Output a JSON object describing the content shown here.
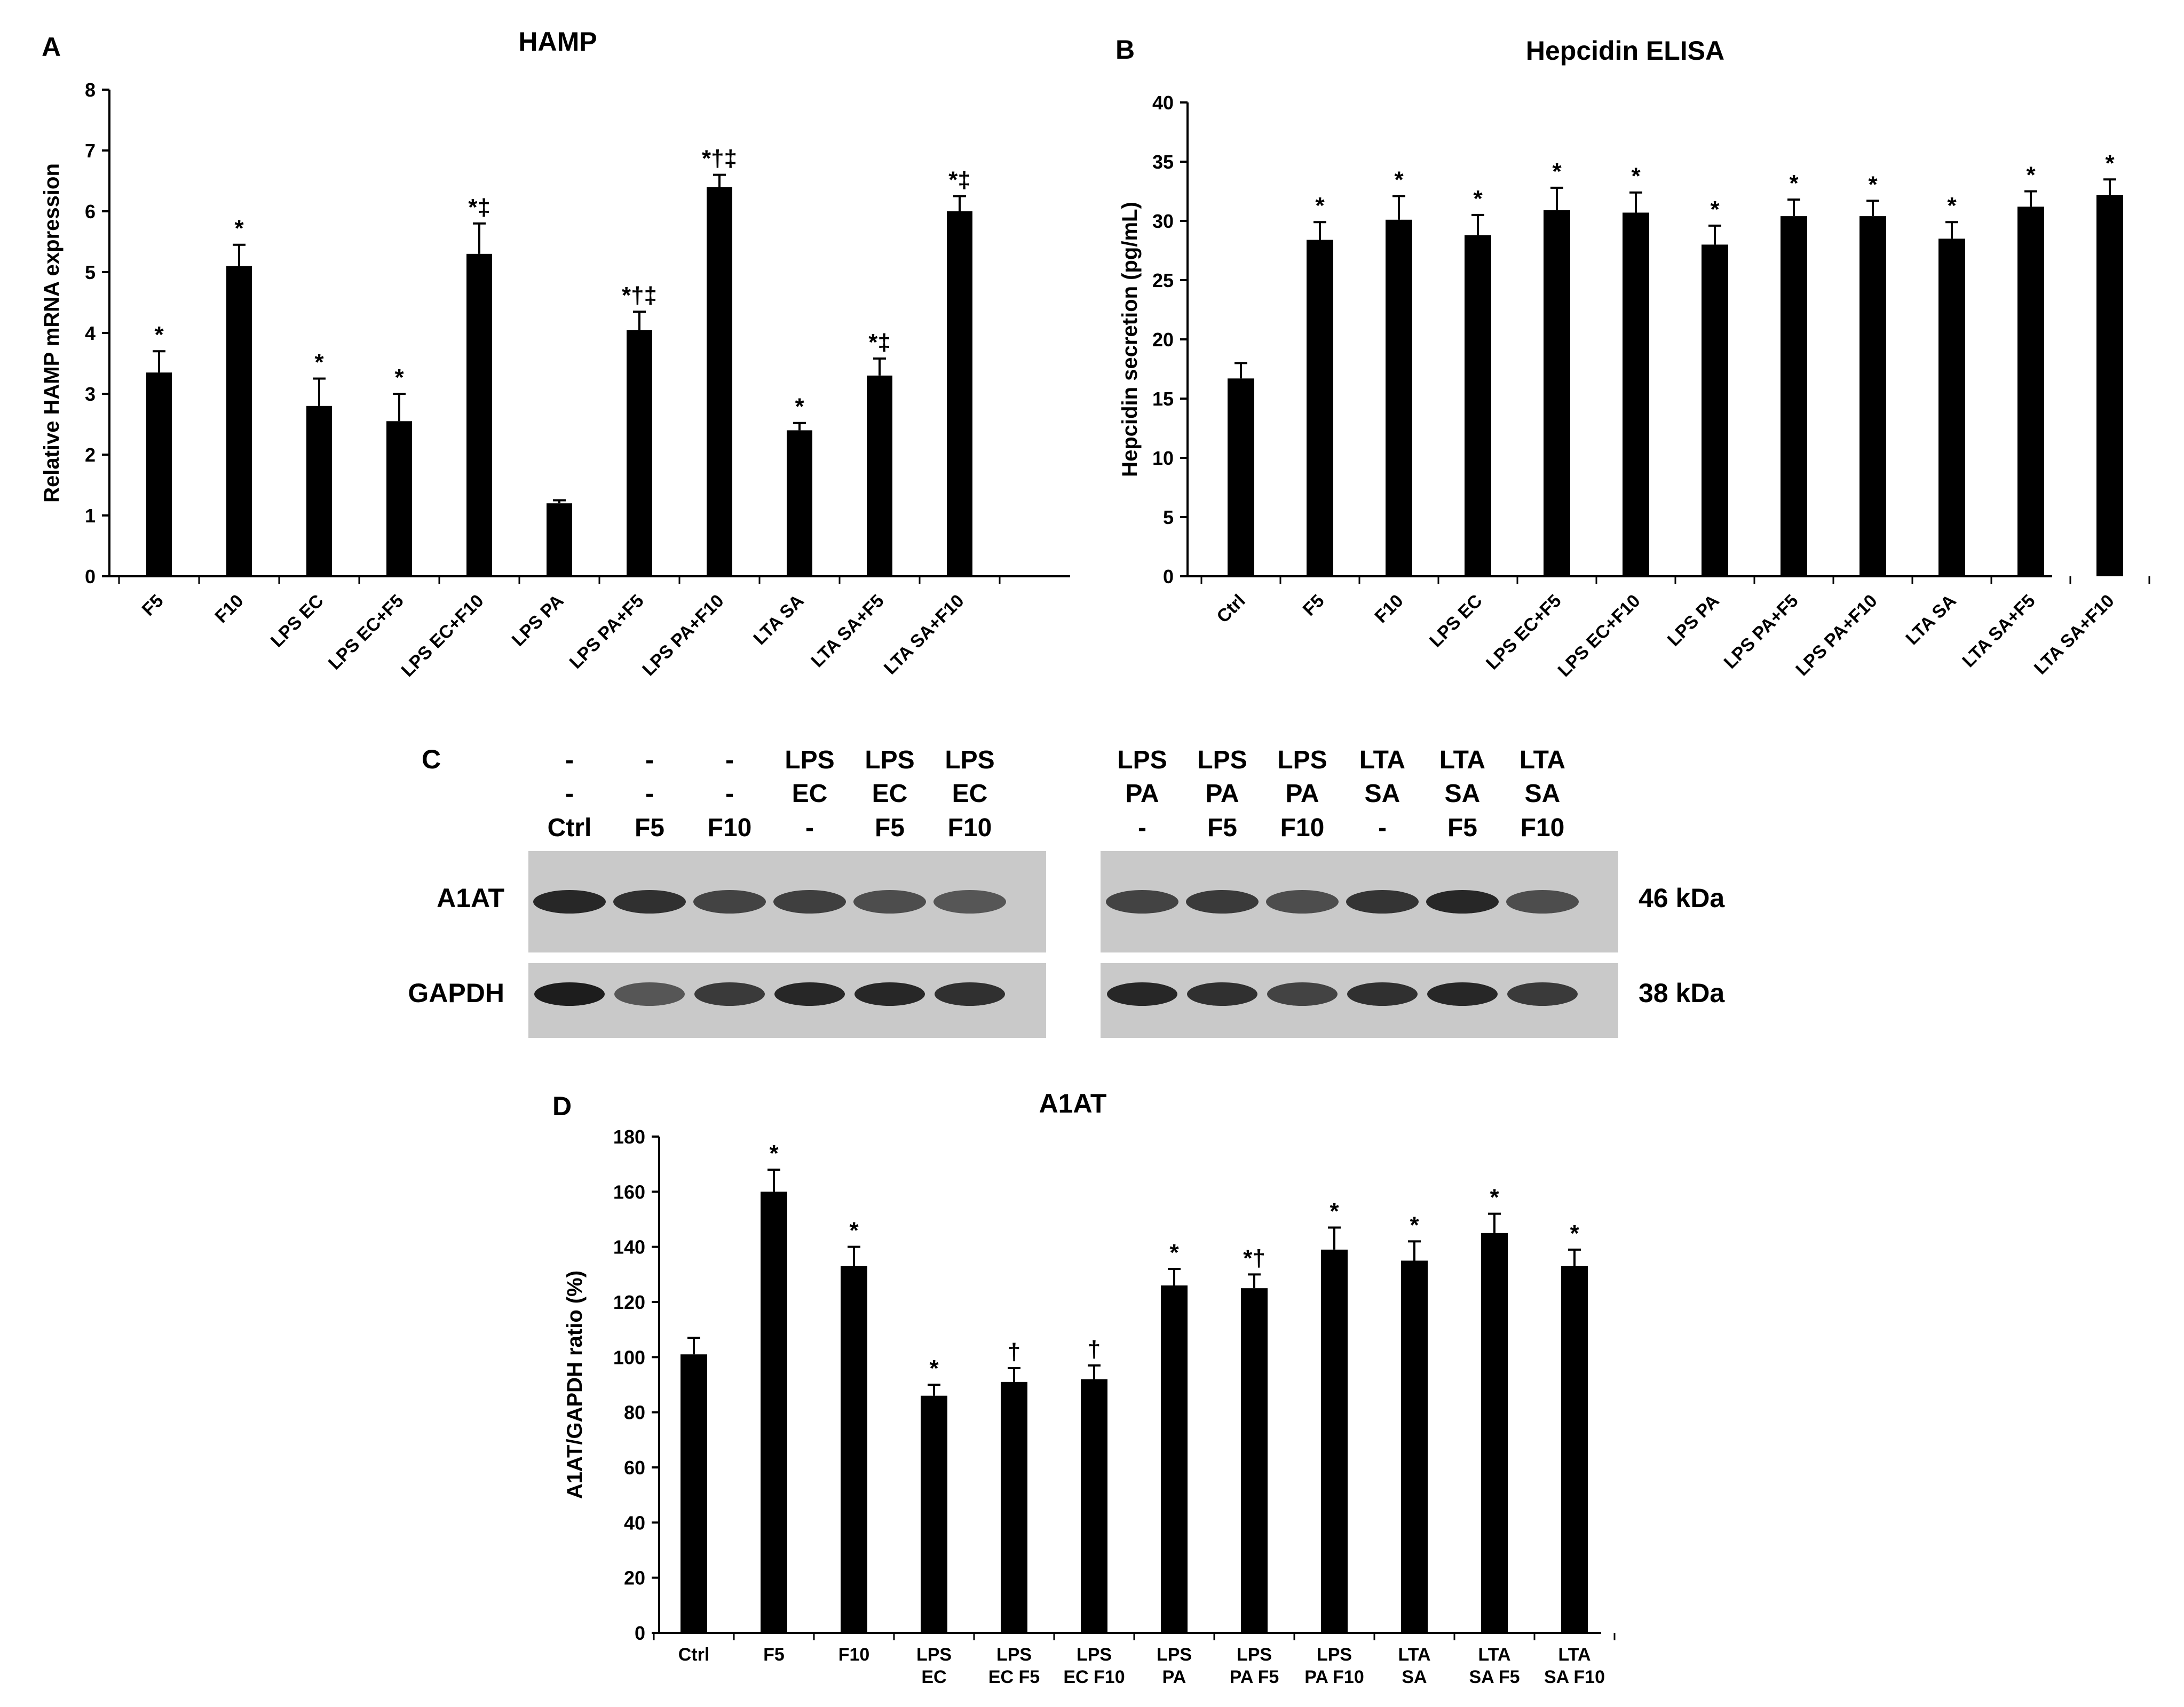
{
  "panels": {
    "A": {
      "letter": "A"
    },
    "B": {
      "letter": "B"
    },
    "C": {
      "letter": "C"
    },
    "D": {
      "letter": "D"
    }
  },
  "chart_data": [
    {
      "id": "A",
      "type": "bar",
      "title": "HAMP",
      "ylabel": "Relative HAMP mRNA expression",
      "xlabel": "",
      "ylim": [
        0,
        8
      ],
      "yticks": [
        0,
        1,
        2,
        3,
        4,
        5,
        6,
        7,
        8
      ],
      "categories": [
        "F5",
        "F10",
        "LPS EC",
        "LPS EC+F5",
        "LPS EC+F10",
        "LPS PA",
        "LPS PA+F5",
        "LPS PA+F10",
        "LTA SA",
        "LTA SA+F5",
        "LTA SA+F10"
      ],
      "values": [
        3.35,
        5.1,
        2.8,
        2.55,
        5.3,
        1.2,
        4.05,
        6.4,
        2.4,
        3.3,
        6.0
      ],
      "errors": [
        0.35,
        0.35,
        0.45,
        0.45,
        0.5,
        0.05,
        0.3,
        0.2,
        0.12,
        0.28,
        0.25
      ],
      "annotations": [
        "*",
        "*",
        "*",
        "*",
        "*‡",
        "",
        "*†‡",
        "*†‡",
        "*",
        "*‡",
        "*‡"
      ],
      "bar_color": "#000000",
      "grid": false
    },
    {
      "id": "B",
      "type": "bar",
      "title": "Hepcidin ELISA",
      "ylabel": "Hepcidin secretion (pg/mL)",
      "xlabel": "",
      "ylim": [
        0,
        40
      ],
      "yticks": [
        0,
        5,
        10,
        15,
        20,
        25,
        30,
        35,
        40
      ],
      "categories": [
        "Ctrl",
        "F5",
        "F10",
        "LPS EC",
        "LPS EC+F5",
        "LPS EC+F10",
        "LPS PA",
        "LPS PA+F5",
        "LPS PA+F10",
        "LTA SA",
        "LTA SA+F5",
        "LTA SA+F10"
      ],
      "values": [
        16.7,
        28.4,
        30.1,
        28.8,
        30.9,
        30.7,
        28.0,
        30.4,
        30.4,
        28.5,
        31.2,
        32.2
      ],
      "errors": [
        1.3,
        1.5,
        2.0,
        1.7,
        1.9,
        1.7,
        1.6,
        1.4,
        1.3,
        1.4,
        1.3,
        1.3
      ],
      "annotations": [
        "",
        "*",
        "*",
        "*",
        "*",
        "*",
        "*",
        "*",
        "*",
        "*",
        "*",
        "*"
      ],
      "bar_color": "#000000",
      "grid": false
    },
    {
      "id": "D",
      "type": "bar",
      "title": "A1AT",
      "ylabel": "A1AT/GAPDH ratio (%)",
      "xlabel": "",
      "ylim": [
        0,
        180
      ],
      "yticks": [
        0,
        20,
        40,
        60,
        80,
        100,
        120,
        140,
        160,
        180
      ],
      "categories": [
        [
          "Ctrl"
        ],
        [
          "F5"
        ],
        [
          "F10"
        ],
        [
          "LPS",
          "EC"
        ],
        [
          "LPS",
          "EC F5"
        ],
        [
          "LPS",
          "EC F10"
        ],
        [
          "LPS",
          "PA"
        ],
        [
          "LPS",
          "PA F5"
        ],
        [
          "LPS",
          "PA F10"
        ],
        [
          "LTA",
          "SA"
        ],
        [
          "LTA",
          "SA F5"
        ],
        [
          "LTA",
          "SA F10"
        ]
      ],
      "values": [
        101,
        160,
        133,
        86,
        91,
        92,
        126,
        125,
        139,
        135,
        145,
        133
      ],
      "errors": [
        6,
        8,
        7,
        4,
        5,
        5,
        6,
        5,
        8,
        7,
        7,
        6
      ],
      "annotations": [
        "",
        "*",
        "*",
        "*",
        "†",
        "†",
        "*",
        "*†",
        "*",
        "*",
        "*",
        "*"
      ],
      "bar_color": "#000000",
      "grid": false
    }
  ],
  "western_blot": {
    "left": {
      "header_rows": [
        [
          "-",
          "-",
          "-",
          "LPS",
          "LPS",
          "LPS"
        ],
        [
          "-",
          "-",
          "-",
          "EC",
          "EC",
          "EC"
        ],
        [
          "Ctrl",
          "F5",
          "F10",
          "-",
          "F5",
          "F10"
        ]
      ],
      "a1at_intensity": [
        0.85,
        0.8,
        0.7,
        0.72,
        0.65,
        0.6
      ],
      "gapdh_intensity": [
        0.9,
        0.6,
        0.75,
        0.85,
        0.85,
        0.8
      ]
    },
    "right": {
      "header_rows": [
        [
          "LPS",
          "LPS",
          "LPS",
          "LTA",
          "LTA",
          "LTA"
        ],
        [
          "PA",
          "PA",
          "PA",
          "SA",
          "SA",
          "SA"
        ],
        [
          "-",
          "F5",
          "F10",
          "-",
          "F5",
          "F10"
        ]
      ],
      "a1at_intensity": [
        0.7,
        0.75,
        0.65,
        0.78,
        0.85,
        0.65
      ],
      "gapdh_intensity": [
        0.85,
        0.8,
        0.7,
        0.8,
        0.85,
        0.75
      ]
    },
    "row_labels": [
      "A1AT",
      "GAPDH"
    ],
    "mw_labels": [
      "46 kDa",
      "38 kDa"
    ]
  }
}
